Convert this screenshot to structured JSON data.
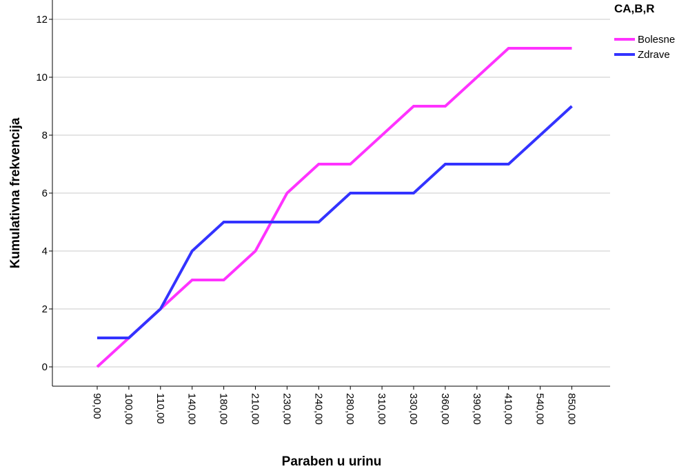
{
  "chart_data": {
    "type": "line",
    "xlabel": "Paraben u urinu",
    "ylabel": "Kumulativna frekvencija",
    "categories": [
      "90,00",
      "100,00",
      "110,00",
      "140,00",
      "180,00",
      "210,00",
      "230,00",
      "240,00",
      "280,00",
      "310,00",
      "330,00",
      "360,00",
      "390,00",
      "410,00",
      "540,00",
      "850,00"
    ],
    "ylim": [
      0,
      12
    ],
    "yticks": [
      "0",
      "2",
      "4",
      "6",
      "8",
      "10",
      "12"
    ],
    "grid": true,
    "legend_title": "CA,B,R",
    "legend_position": "top-right",
    "series": [
      {
        "name": "Bolesne",
        "color": "#ff33ff",
        "values": [
          0,
          null,
          2,
          3,
          3,
          4,
          6,
          7,
          7,
          null,
          9,
          9,
          null,
          11,
          null,
          11
        ]
      },
      {
        "name": "Zdrave",
        "color": "#3333ff",
        "values": [
          1,
          1,
          2,
          4,
          5,
          5,
          5,
          5,
          6,
          6,
          6,
          7,
          7,
          7,
          null,
          9
        ]
      }
    ]
  }
}
